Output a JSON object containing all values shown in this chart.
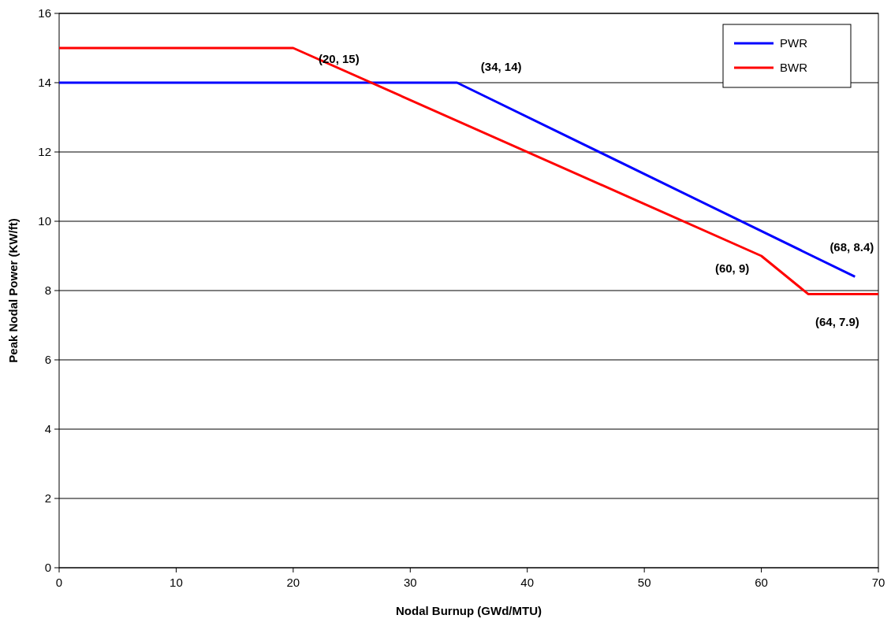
{
  "chart_data": {
    "type": "line",
    "xlabel": "Nodal Burnup (GWd/MTU)",
    "ylabel": "Peak Nodal Power (KW/ft)",
    "xlim": [
      0,
      70
    ],
    "xticks": [
      0,
      10,
      20,
      30,
      40,
      50,
      60,
      70
    ],
    "ylim": [
      0,
      16
    ],
    "yticks": [
      0,
      2,
      4,
      6,
      8,
      10,
      12,
      14,
      16
    ],
    "grid": "y",
    "legend": "top right",
    "marker": "none",
    "line_style": "solid",
    "series": [
      {
        "name": "PWR",
        "color": "#0000ff",
        "x": [
          0,
          34,
          68
        ],
        "values": [
          14,
          14,
          8.4
        ]
      },
      {
        "name": "BWR",
        "color": "#ff0000",
        "x": [
          0,
          20,
          60,
          64,
          70
        ],
        "values": [
          15,
          15,
          9,
          7.9,
          7.9
        ]
      }
    ],
    "annotations": [
      {
        "text": "(20, 15)",
        "x": 20,
        "y": 15
      },
      {
        "text": "(34, 14)",
        "x": 34,
        "y": 14
      },
      {
        "text": "(68, 8.4)",
        "x": 68,
        "y": 8.4
      },
      {
        "text": "(60, 9)",
        "x": 60,
        "y": 9
      },
      {
        "text": "(64, 7.9)",
        "x": 64,
        "y": 7.9
      }
    ]
  }
}
